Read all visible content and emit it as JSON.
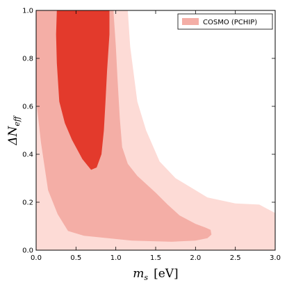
{
  "chart_data": {
    "type": "area",
    "title": "",
    "xlabel_var": "m",
    "xlabel_sub": "s",
    "xlabel_unit": "[eV]",
    "ylabel_prefix": "ΔN",
    "ylabel_sub": "eff",
    "xlim": [
      0.0,
      3.0
    ],
    "ylim": [
      0.0,
      1.0
    ],
    "x_ticks": [
      "0.0",
      "0.5",
      "1.0",
      "1.5",
      "2.0",
      "2.5",
      "3.0"
    ],
    "y_ticks": [
      "0.0",
      "0.2",
      "0.4",
      "0.6",
      "0.8",
      "1.0"
    ],
    "grid": false,
    "legend": {
      "position": "top-right",
      "entries": [
        "COSMO (PCHIP)"
      ]
    },
    "colors": {
      "outer": "#fddbd6",
      "middle": "#f4aea6",
      "inner": "#e33a2c",
      "legend_swatch": "#f4aea6"
    },
    "contours": [
      {
        "level": "outer",
        "points": [
          [
            0.0,
            0.0
          ],
          [
            0.0,
            1.0
          ],
          [
            1.15,
            1.0
          ],
          [
            1.18,
            0.85
          ],
          [
            1.27,
            0.62
          ],
          [
            1.38,
            0.5
          ],
          [
            1.55,
            0.37
          ],
          [
            1.75,
            0.3
          ],
          [
            1.95,
            0.26
          ],
          [
            2.15,
            0.22
          ],
          [
            2.5,
            0.195
          ],
          [
            2.8,
            0.19
          ],
          [
            3.0,
            0.155
          ],
          [
            3.0,
            0.0
          ]
        ]
      },
      {
        "level": "middle",
        "points": [
          [
            0.0,
            0.0
          ],
          [
            0.0,
            1.0
          ],
          [
            0.97,
            1.0
          ],
          [
            1.0,
            0.85
          ],
          [
            1.02,
            0.72
          ],
          [
            1.05,
            0.55
          ],
          [
            1.08,
            0.43
          ],
          [
            1.15,
            0.36
          ],
          [
            1.27,
            0.31
          ],
          [
            1.5,
            0.24
          ],
          [
            1.65,
            0.19
          ],
          [
            1.8,
            0.145
          ],
          [
            2.0,
            0.11
          ],
          [
            2.12,
            0.095
          ],
          [
            2.19,
            0.085
          ],
          [
            2.2,
            0.065
          ],
          [
            2.15,
            0.05
          ],
          [
            2.0,
            0.04
          ],
          [
            1.7,
            0.035
          ],
          [
            1.2,
            0.04
          ],
          [
            0.9,
            0.05
          ],
          [
            0.6,
            0.06
          ],
          [
            0.4,
            0.08
          ],
          [
            0.27,
            0.15
          ],
          [
            0.15,
            0.25
          ],
          [
            0.06,
            0.45
          ],
          [
            0.0,
            0.63
          ]
        ]
      },
      {
        "level": "inner",
        "points": [
          [
            0.26,
            1.0
          ],
          [
            0.92,
            1.0
          ],
          [
            0.92,
            0.9
          ],
          [
            0.89,
            0.75
          ],
          [
            0.87,
            0.62
          ],
          [
            0.85,
            0.5
          ],
          [
            0.82,
            0.4
          ],
          [
            0.76,
            0.345
          ],
          [
            0.69,
            0.335
          ],
          [
            0.58,
            0.38
          ],
          [
            0.45,
            0.46
          ],
          [
            0.36,
            0.53
          ],
          [
            0.29,
            0.62
          ],
          [
            0.26,
            0.78
          ],
          [
            0.25,
            0.9
          ]
        ]
      }
    ]
  }
}
